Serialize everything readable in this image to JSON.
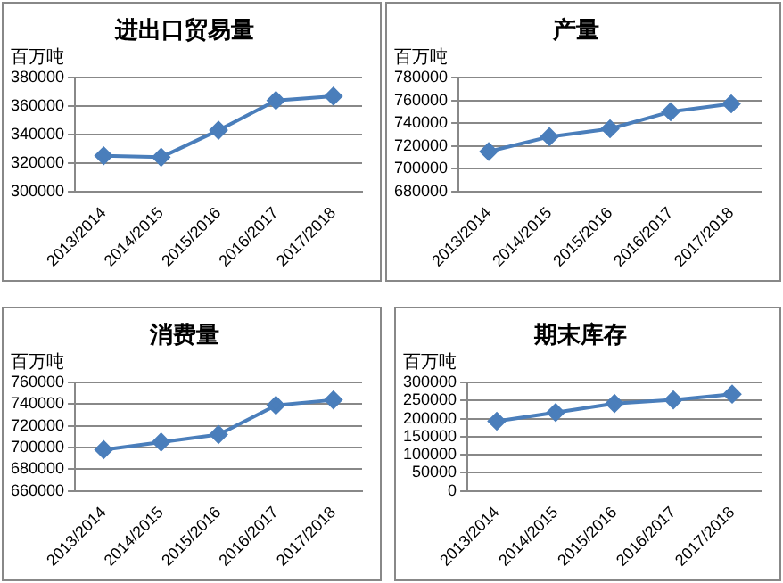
{
  "chart_data": [
    {
      "type": "line",
      "title": "进出口贸易量",
      "ylabel": "百万吨",
      "categories": [
        "2013/2014",
        "2014/2015",
        "2015/2016",
        "2016/2017",
        "2017/2018"
      ],
      "series": [
        {
          "color": "#4a7ebb",
          "values": [
            325000,
            324000,
            343000,
            364000,
            367000
          ]
        }
      ],
      "ylim": [
        300000,
        380000
      ],
      "yticks": [
        300000,
        320000,
        340000,
        360000,
        380000
      ],
      "grid": "y",
      "marker": "diamond",
      "legend": false
    },
    {
      "type": "line",
      "title": "产量",
      "ylabel": "百万吨",
      "categories": [
        "2013/2014",
        "2014/2015",
        "2015/2016",
        "2016/2017",
        "2017/2018"
      ],
      "series": [
        {
          "color": "#4a7ebb",
          "values": [
            715000,
            728000,
            735000,
            750000,
            757000
          ]
        }
      ],
      "ylim": [
        680000,
        780000
      ],
      "yticks": [
        680000,
        700000,
        720000,
        740000,
        760000,
        780000
      ],
      "grid": "y",
      "marker": "diamond",
      "legend": false
    },
    {
      "type": "line",
      "title": "消费量",
      "ylabel": "百万吨",
      "categories": [
        "2013/2014",
        "2014/2015",
        "2015/2016",
        "2016/2017",
        "2017/2018"
      ],
      "series": [
        {
          "color": "#4a7ebb",
          "values": [
            698000,
            705000,
            712000,
            739000,
            744000
          ]
        }
      ],
      "ylim": [
        660000,
        760000
      ],
      "yticks": [
        660000,
        680000,
        700000,
        720000,
        740000,
        760000
      ],
      "grid": "y",
      "marker": "diamond",
      "legend": false
    },
    {
      "type": "line",
      "title": "期末库存",
      "ylabel": "百万吨",
      "categories": [
        "2013/2014",
        "2014/2015",
        "2015/2016",
        "2016/2017",
        "2017/2018"
      ],
      "series": [
        {
          "color": "#4a7ebb",
          "values": [
            193000,
            217000,
            242000,
            252000,
            268000
          ]
        }
      ],
      "ylim": [
        0,
        300000
      ],
      "yticks": [
        0,
        50000,
        100000,
        150000,
        200000,
        250000,
        300000
      ],
      "grid": "y",
      "marker": "diamond",
      "legend": false
    }
  ]
}
